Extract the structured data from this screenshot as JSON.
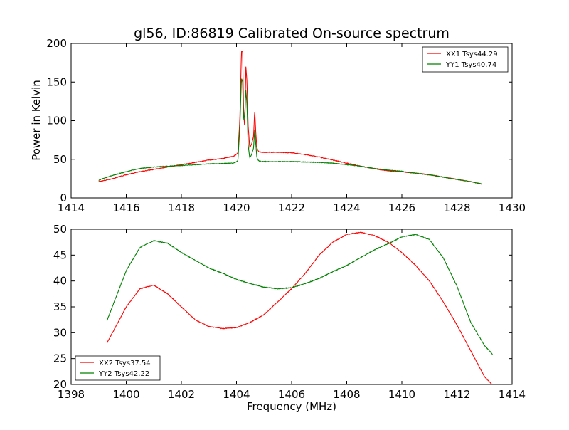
{
  "figure": {
    "title": "gl56, ID:86819 Calibrated On-source spectrum",
    "ylabel": "Power in Kelvin",
    "xlabel": "Frequency (MHz)"
  },
  "chart_data": [
    {
      "type": "line",
      "title": "gl56, ID:86819 Calibrated On-source spectrum",
      "xlabel": "",
      "ylabel": "Power in Kelvin",
      "xlim": [
        1414,
        1430
      ],
      "ylim": [
        0,
        200
      ],
      "xticks": [
        1414,
        1416,
        1418,
        1420,
        1422,
        1424,
        1426,
        1428,
        1430
      ],
      "yticks": [
        0,
        50,
        100,
        150,
        200
      ],
      "legend_position": "upper-right",
      "grid": false,
      "series": [
        {
          "name": "XX1 Tsys44.29",
          "color": "#ff0000",
          "x": [
            1415.0,
            1415.5,
            1416.0,
            1416.5,
            1417.0,
            1417.5,
            1418.0,
            1418.5,
            1419.0,
            1419.5,
            1419.9,
            1420.05,
            1420.12,
            1420.18,
            1420.22,
            1420.26,
            1420.3,
            1420.34,
            1420.38,
            1420.42,
            1420.48,
            1420.55,
            1420.62,
            1420.66,
            1420.7,
            1420.74,
            1420.8,
            1420.9,
            1421.0,
            1421.2,
            1421.5,
            1422.0,
            1422.5,
            1423.0,
            1423.5,
            1424.0,
            1424.5,
            1425.0,
            1425.5,
            1426.0,
            1426.5,
            1427.0,
            1427.5,
            1428.0,
            1428.5,
            1428.9
          ],
          "y": [
            21,
            25,
            30,
            34,
            37,
            40,
            43,
            46,
            49,
            51,
            54,
            58,
            100,
            190,
            190,
            110,
            90,
            170,
            150,
            95,
            65,
            70,
            80,
            114,
            85,
            65,
            60,
            59,
            59,
            59,
            59,
            58.5,
            56,
            53,
            49,
            45,
            41,
            38,
            35,
            34,
            32,
            30,
            27,
            24,
            21,
            18
          ]
        },
        {
          "name": "YY1 Tsys40.74",
          "color": "#008000",
          "x": [
            1415.0,
            1415.5,
            1416.0,
            1416.5,
            1417.0,
            1417.5,
            1418.0,
            1418.5,
            1419.0,
            1419.5,
            1419.9,
            1420.05,
            1420.12,
            1420.18,
            1420.22,
            1420.26,
            1420.3,
            1420.34,
            1420.38,
            1420.42,
            1420.48,
            1420.55,
            1420.62,
            1420.66,
            1420.7,
            1420.74,
            1420.8,
            1420.9,
            1421.0,
            1421.2,
            1421.5,
            1422.0,
            1422.5,
            1423.0,
            1423.5,
            1424.0,
            1424.5,
            1425.0,
            1425.5,
            1426.0,
            1426.5,
            1427.0,
            1427.5,
            1428.0,
            1428.5,
            1428.9
          ],
          "y": [
            23,
            29,
            34,
            38,
            40,
            41,
            42,
            43,
            44,
            44.5,
            45,
            48,
            90,
            155,
            150,
            100,
            108,
            140,
            120,
            70,
            52,
            56,
            65,
            90,
            70,
            52,
            48,
            47,
            47,
            47,
            47,
            47,
            46.5,
            46,
            45,
            43,
            41,
            38,
            36,
            34.5,
            32,
            30,
            27,
            24,
            21,
            18
          ]
        }
      ]
    },
    {
      "type": "line",
      "title": "",
      "xlabel": "Frequency (MHz)",
      "ylabel": "",
      "xlim": [
        1398,
        1414
      ],
      "ylim": [
        20,
        50
      ],
      "xticks": [
        1398,
        1400,
        1402,
        1404,
        1406,
        1408,
        1410,
        1412,
        1414
      ],
      "yticks": [
        20,
        25,
        30,
        35,
        40,
        45,
        50
      ],
      "legend_position": "lower-left",
      "grid": false,
      "series": [
        {
          "name": "XX2 Tsys37.54",
          "color": "#ff0000",
          "x": [
            1399.3,
            1399.6,
            1400.0,
            1400.5,
            1401.0,
            1401.5,
            1402.0,
            1402.5,
            1403.0,
            1403.5,
            1404.0,
            1404.5,
            1405.0,
            1405.5,
            1406.0,
            1406.5,
            1407.0,
            1407.5,
            1408.0,
            1408.5,
            1409.0,
            1409.5,
            1410.0,
            1410.5,
            1411.0,
            1411.5,
            1412.0,
            1412.5,
            1413.0,
            1413.3
          ],
          "y": [
            28,
            31,
            35,
            38.5,
            39.2,
            37.5,
            35,
            32.5,
            31.2,
            30.8,
            31,
            32,
            33.5,
            36,
            38.5,
            41.5,
            45,
            47.5,
            49,
            49.4,
            48.8,
            47.5,
            45.5,
            43,
            40,
            36,
            31.5,
            26.5,
            21.5,
            19.8
          ]
        },
        {
          "name": "YY2 Tsys42.22",
          "color": "#008000",
          "x": [
            1399.3,
            1399.6,
            1400.0,
            1400.5,
            1401.0,
            1401.5,
            1402.0,
            1402.5,
            1403.0,
            1403.5,
            1404.0,
            1404.5,
            1405.0,
            1405.5,
            1406.0,
            1406.5,
            1407.0,
            1407.5,
            1408.0,
            1408.5,
            1409.0,
            1409.5,
            1410.0,
            1410.5,
            1411.0,
            1411.5,
            1412.0,
            1412.5,
            1413.0,
            1413.3
          ],
          "y": [
            32.3,
            36.5,
            42,
            46.5,
            47.8,
            47.3,
            45.5,
            44,
            42.5,
            41.5,
            40.3,
            39.5,
            38.8,
            38.5,
            38.7,
            39.5,
            40.5,
            41.8,
            43,
            44.5,
            46,
            47.2,
            48.5,
            49,
            48,
            44.5,
            39,
            32,
            27.5,
            25.8
          ]
        }
      ]
    }
  ]
}
